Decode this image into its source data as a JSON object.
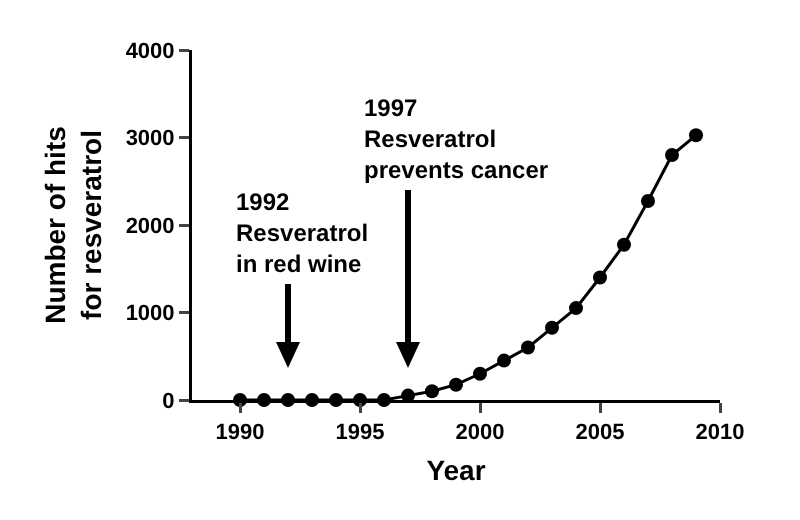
{
  "chart_data": {
    "type": "line",
    "xlabel": "Year",
    "ylabel": "Number of hits\nfor resveratrol",
    "x": [
      1990,
      1991,
      1992,
      1993,
      1994,
      1995,
      1996,
      1997,
      1998,
      1999,
      2000,
      2001,
      2002,
      2003,
      2004,
      2005,
      2006,
      2007,
      2008,
      2009
    ],
    "series": [
      {
        "color": "#000000",
        "values": [
          0,
          0,
          0,
          0,
          0,
          0,
          0,
          50,
          100,
          175,
          300,
          450,
          600,
          825,
          1050,
          1400,
          1775,
          2275,
          2800,
          3025
        ]
      }
    ],
    "xlim": [
      1988,
      2010
    ],
    "xticks": [
      1990,
      1995,
      2000,
      2005,
      2010
    ],
    "ylim": [
      0,
      4000
    ],
    "yticks": [
      0,
      1000,
      2000,
      3000,
      4000
    ],
    "grid": false,
    "marker": "circle",
    "line_style": "solid",
    "annotations": [
      "1992\nResveratrol\nin red wine",
      "1997\nResveratrol\nprevents cancer"
    ]
  }
}
